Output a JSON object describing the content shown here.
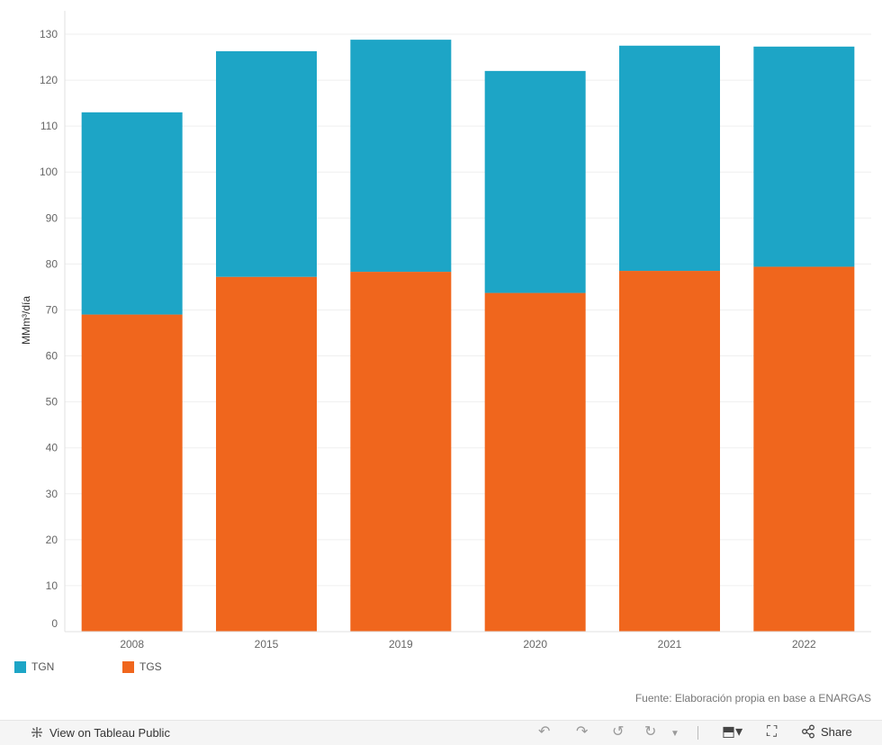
{
  "chart_data": {
    "type": "bar",
    "stacked": true,
    "categories": [
      "2008",
      "2015",
      "2019",
      "2020",
      "2021",
      "2022"
    ],
    "series": [
      {
        "name": "TGS",
        "color": "#f0661d",
        "values": [
          69,
          77.2,
          78.3,
          73.7,
          78.5,
          79.4
        ]
      },
      {
        "name": "TGN",
        "color": "#1da5c6",
        "values": [
          44,
          49.1,
          50.5,
          48.3,
          49.0,
          47.9
        ]
      }
    ],
    "ylabel": "MMm³/día",
    "ylim": [
      0,
      130
    ],
    "yticks": [
      0,
      10,
      20,
      30,
      40,
      50,
      60,
      70,
      80,
      90,
      100,
      110,
      120,
      130
    ],
    "grid": true,
    "legend_position": "bottom-left"
  },
  "legend": {
    "items": [
      {
        "label": "TGN",
        "color": "#1da5c6"
      },
      {
        "label": "TGS",
        "color": "#f0661d"
      }
    ]
  },
  "source_note": "Fuente: Elaboración propia en base a ENARGAS",
  "toolbar": {
    "view_label": "View on Tableau Public",
    "share_label": "Share",
    "icons": [
      "tableau-logo-icon",
      "undo-icon",
      "redo-icon",
      "revert-icon",
      "refresh-icon",
      "dropdown-icon",
      "download-icon",
      "fullscreen-icon",
      "share-icon"
    ]
  }
}
